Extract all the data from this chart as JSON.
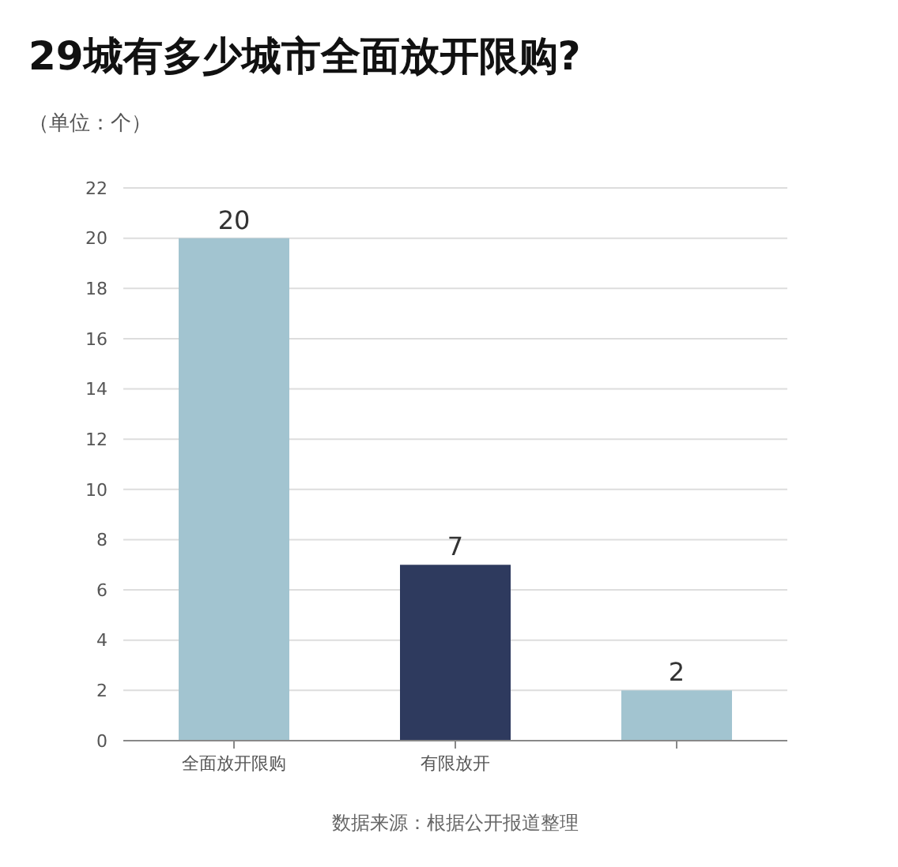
{
  "chart_data": {
    "type": "bar",
    "title": "29城有多少城市全面放开限购?",
    "ylabel": "（单位：个）",
    "categories": [
      "全面放开限购",
      "有限放开",
      null
    ],
    "values": [
      20,
      7,
      2
    ],
    "colors": [
      "#a2c4d0",
      "#2e3a5e",
      "#a2c4d0"
    ],
    "ylim": [
      0,
      22
    ],
    "yticks": [
      0,
      2,
      4,
      6,
      8,
      10,
      12,
      14,
      16,
      18,
      20,
      22
    ],
    "grid": "y",
    "data_labels": true,
    "annotations": [
      "数据来源：根据公开报道整理"
    ]
  }
}
